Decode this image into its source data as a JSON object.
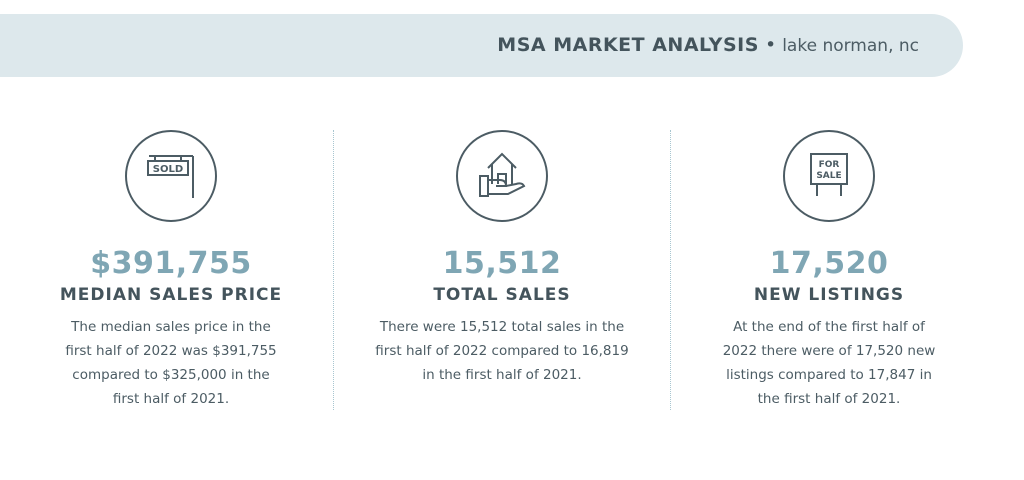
{
  "header": {
    "title": "MSA MARKET ANALYSIS",
    "separator": "•",
    "location": "lake norman, nc"
  },
  "stats": [
    {
      "icon": "sold-sign-icon",
      "sign_text": "SOLD",
      "value": "$391,755",
      "label": "MEDIAN SALES PRICE",
      "description": "The median sales price in the first half of 2022 was $391,755 compared to $325,000 in the first half of 2021."
    },
    {
      "icon": "house-in-hand-icon",
      "value": "15,512",
      "label": "TOTAL SALES",
      "description": "There were 15,512 total sales in the first half of 2022 compared to 16,819 in the first half of 2021."
    },
    {
      "icon": "for-sale-sign-icon",
      "sign_text": "FOR SALE",
      "value": "17,520",
      "label": "NEW LISTINGS",
      "description": "At the end of the first half of 2022 there were of 17,520 new listings compared to 17,847 in the first half of 2021."
    }
  ]
}
